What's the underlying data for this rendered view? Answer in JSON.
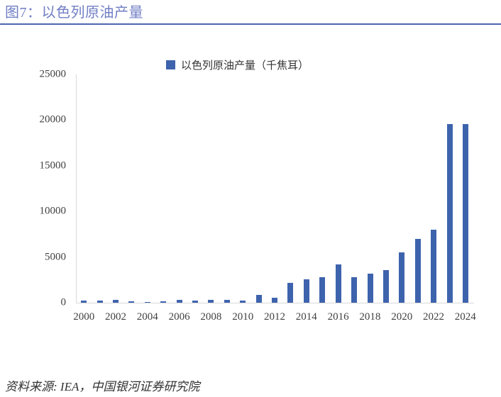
{
  "header": {
    "title": "图7：以色列原油产量"
  },
  "chart_data": {
    "type": "bar",
    "title": "图7：以色列原油产量",
    "legend": "以色列原油产量（千焦耳）",
    "legend_position": "top",
    "grid": false,
    "categories": [
      "2000",
      "2001",
      "2002",
      "2003",
      "2004",
      "2005",
      "2006",
      "2007",
      "2008",
      "2009",
      "2010",
      "2011",
      "2012",
      "2013",
      "2014",
      "2015",
      "2016",
      "2017",
      "2018",
      "2019",
      "2020",
      "2021",
      "2022",
      "2023",
      "2024"
    ],
    "values": [
      250,
      230,
      300,
      130,
      100,
      150,
      330,
      210,
      310,
      280,
      210,
      860,
      540,
      2200,
      2550,
      2800,
      4200,
      2820,
      3150,
      3600,
      5500,
      7000,
      8000,
      19600,
      19600
    ],
    "x_tick_labels": [
      "2000",
      "2002",
      "2004",
      "2006",
      "2008",
      "2010",
      "2012",
      "2014",
      "2016",
      "2018",
      "2020",
      "2022",
      "2024"
    ],
    "y_ticks": [
      0,
      5000,
      10000,
      15000,
      20000,
      25000
    ],
    "ylim": [
      0,
      25000
    ],
    "xlabel": "",
    "ylabel": ""
  },
  "footer": {
    "source": "资料来源: IEA，中国银河证券研究院"
  },
  "colors": {
    "bar": "#3E63AD",
    "title_text": "#707EC5",
    "title_rule": "#4D66AE",
    "axis_line": "#D9D9D9",
    "tick_text": "#404040"
  }
}
